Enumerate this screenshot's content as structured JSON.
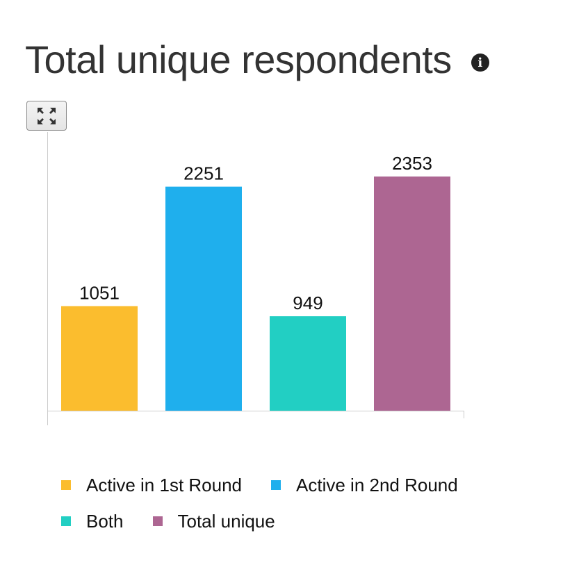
{
  "title": "Total unique respondents",
  "info_icon": "info-circle-icon",
  "expand_icon": "expand-arrows-icon",
  "chart_data": {
    "type": "bar",
    "categories": [
      "Active in 1st Round",
      "Active in 2nd Round",
      "Both",
      "Total unique"
    ],
    "values": [
      1051,
      2251,
      949,
      2353
    ],
    "colors": [
      "#fbbd2e",
      "#1fafed",
      "#22cfc3",
      "#ad6692"
    ],
    "ylim": [
      0,
      2800
    ],
    "grid": false,
    "legend_position": "bottom",
    "data_labels": true
  },
  "legend": {
    "items": [
      {
        "label": "Active in 1st Round",
        "color": "#fbbd2e"
      },
      {
        "label": "Active in 2nd Round",
        "color": "#1fafed"
      },
      {
        "label": "Both",
        "color": "#22cfc3"
      },
      {
        "label": "Total unique",
        "color": "#ad6692"
      }
    ]
  }
}
